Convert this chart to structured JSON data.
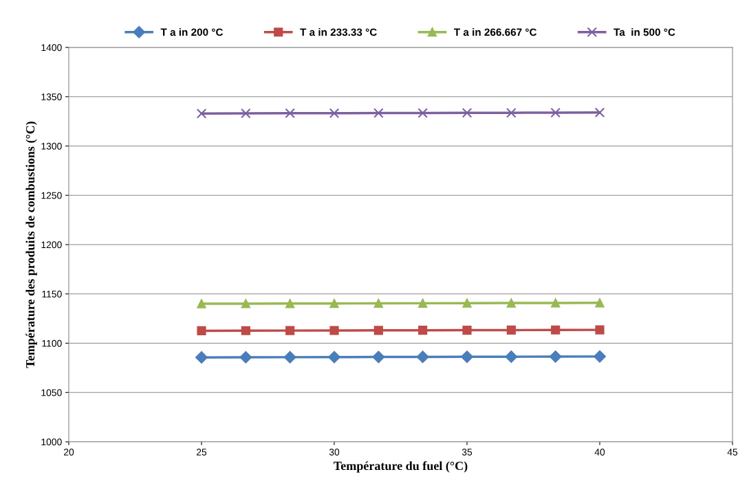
{
  "chart_data": {
    "type": "line",
    "xlabel": "Température du fuel (°C)",
    "ylabel": "Température des produits de combustions (°C)",
    "x": [
      25,
      26.667,
      28.333,
      30,
      31.667,
      33.333,
      35,
      36.667,
      38.333,
      40
    ],
    "series": [
      {
        "name": "T a in 200 °C",
        "color": "#4a7ebb",
        "marker": "diamond",
        "values": [
          1085.6,
          1085.7,
          1085.8,
          1085.9,
          1086,
          1086.1,
          1086.2,
          1086.3,
          1086.4,
          1086.5
        ]
      },
      {
        "name": "T a in 233.33 °C",
        "color": "#be4b48",
        "marker": "square",
        "values": [
          1112.6,
          1112.7,
          1112.8,
          1112.9,
          1113,
          1113.1,
          1113.2,
          1113.3,
          1113.4,
          1113.5
        ]
      },
      {
        "name": "T a in 266.667 °C",
        "color": "#98b954",
        "marker": "triangle",
        "values": [
          1140,
          1140.1,
          1140.2,
          1140.3,
          1140.4,
          1140.5,
          1140.6,
          1140.7,
          1140.8,
          1140.9
        ]
      },
      {
        "name": "Ta  in 500 °C",
        "color": "#7d60a0",
        "marker": "cross",
        "values": [
          1333,
          1333.1,
          1333.2,
          1333.3,
          1333.4,
          1333.5,
          1333.6,
          1333.7,
          1333.8,
          1333.9
        ]
      }
    ],
    "xlim": [
      20,
      45
    ],
    "xticks": [
      20,
      25,
      30,
      35,
      40,
      45
    ],
    "ylim": [
      1000,
      1400
    ],
    "yticks": [
      1000,
      1050,
      1100,
      1150,
      1200,
      1250,
      1300,
      1350,
      1400
    ],
    "grid": "y",
    "legend": "top"
  }
}
